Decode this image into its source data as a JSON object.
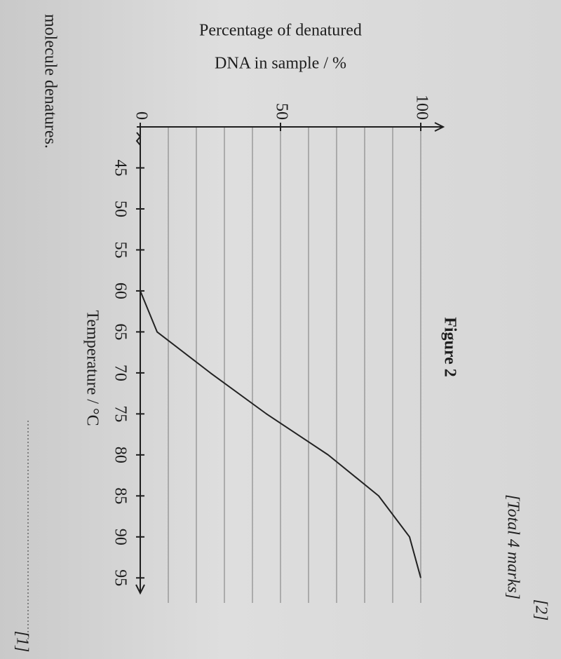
{
  "page_text": {
    "marks": "[2]",
    "total": "[Total 4 marks]",
    "question": "molecule denatures.",
    "mark": "[1]"
  },
  "chart_data": {
    "type": "line",
    "title": "Figure 2",
    "xlabel": "Temperature / °C",
    "ylabel": [
      "Percentage of denatured",
      "DNA in sample / %"
    ],
    "x": [
      45,
      50,
      55,
      60,
      65,
      70,
      75,
      80,
      85,
      90,
      95
    ],
    "series": [
      {
        "color": "#222222",
        "values": [
          0,
          0,
          0,
          0,
          6,
          25,
          45,
          67,
          85,
          96,
          100
        ]
      }
    ],
    "xlim": [
      40,
      96
    ],
    "xticks": [
      45,
      50,
      55,
      60,
      65,
      70,
      75,
      80,
      85,
      90,
      95
    ],
    "ylim": [
      0,
      100
    ],
    "yticks": [
      0,
      50,
      100
    ],
    "y_gridlines": [
      10,
      20,
      30,
      40,
      50,
      60,
      70,
      80,
      90,
      100
    ],
    "grid": true
  }
}
